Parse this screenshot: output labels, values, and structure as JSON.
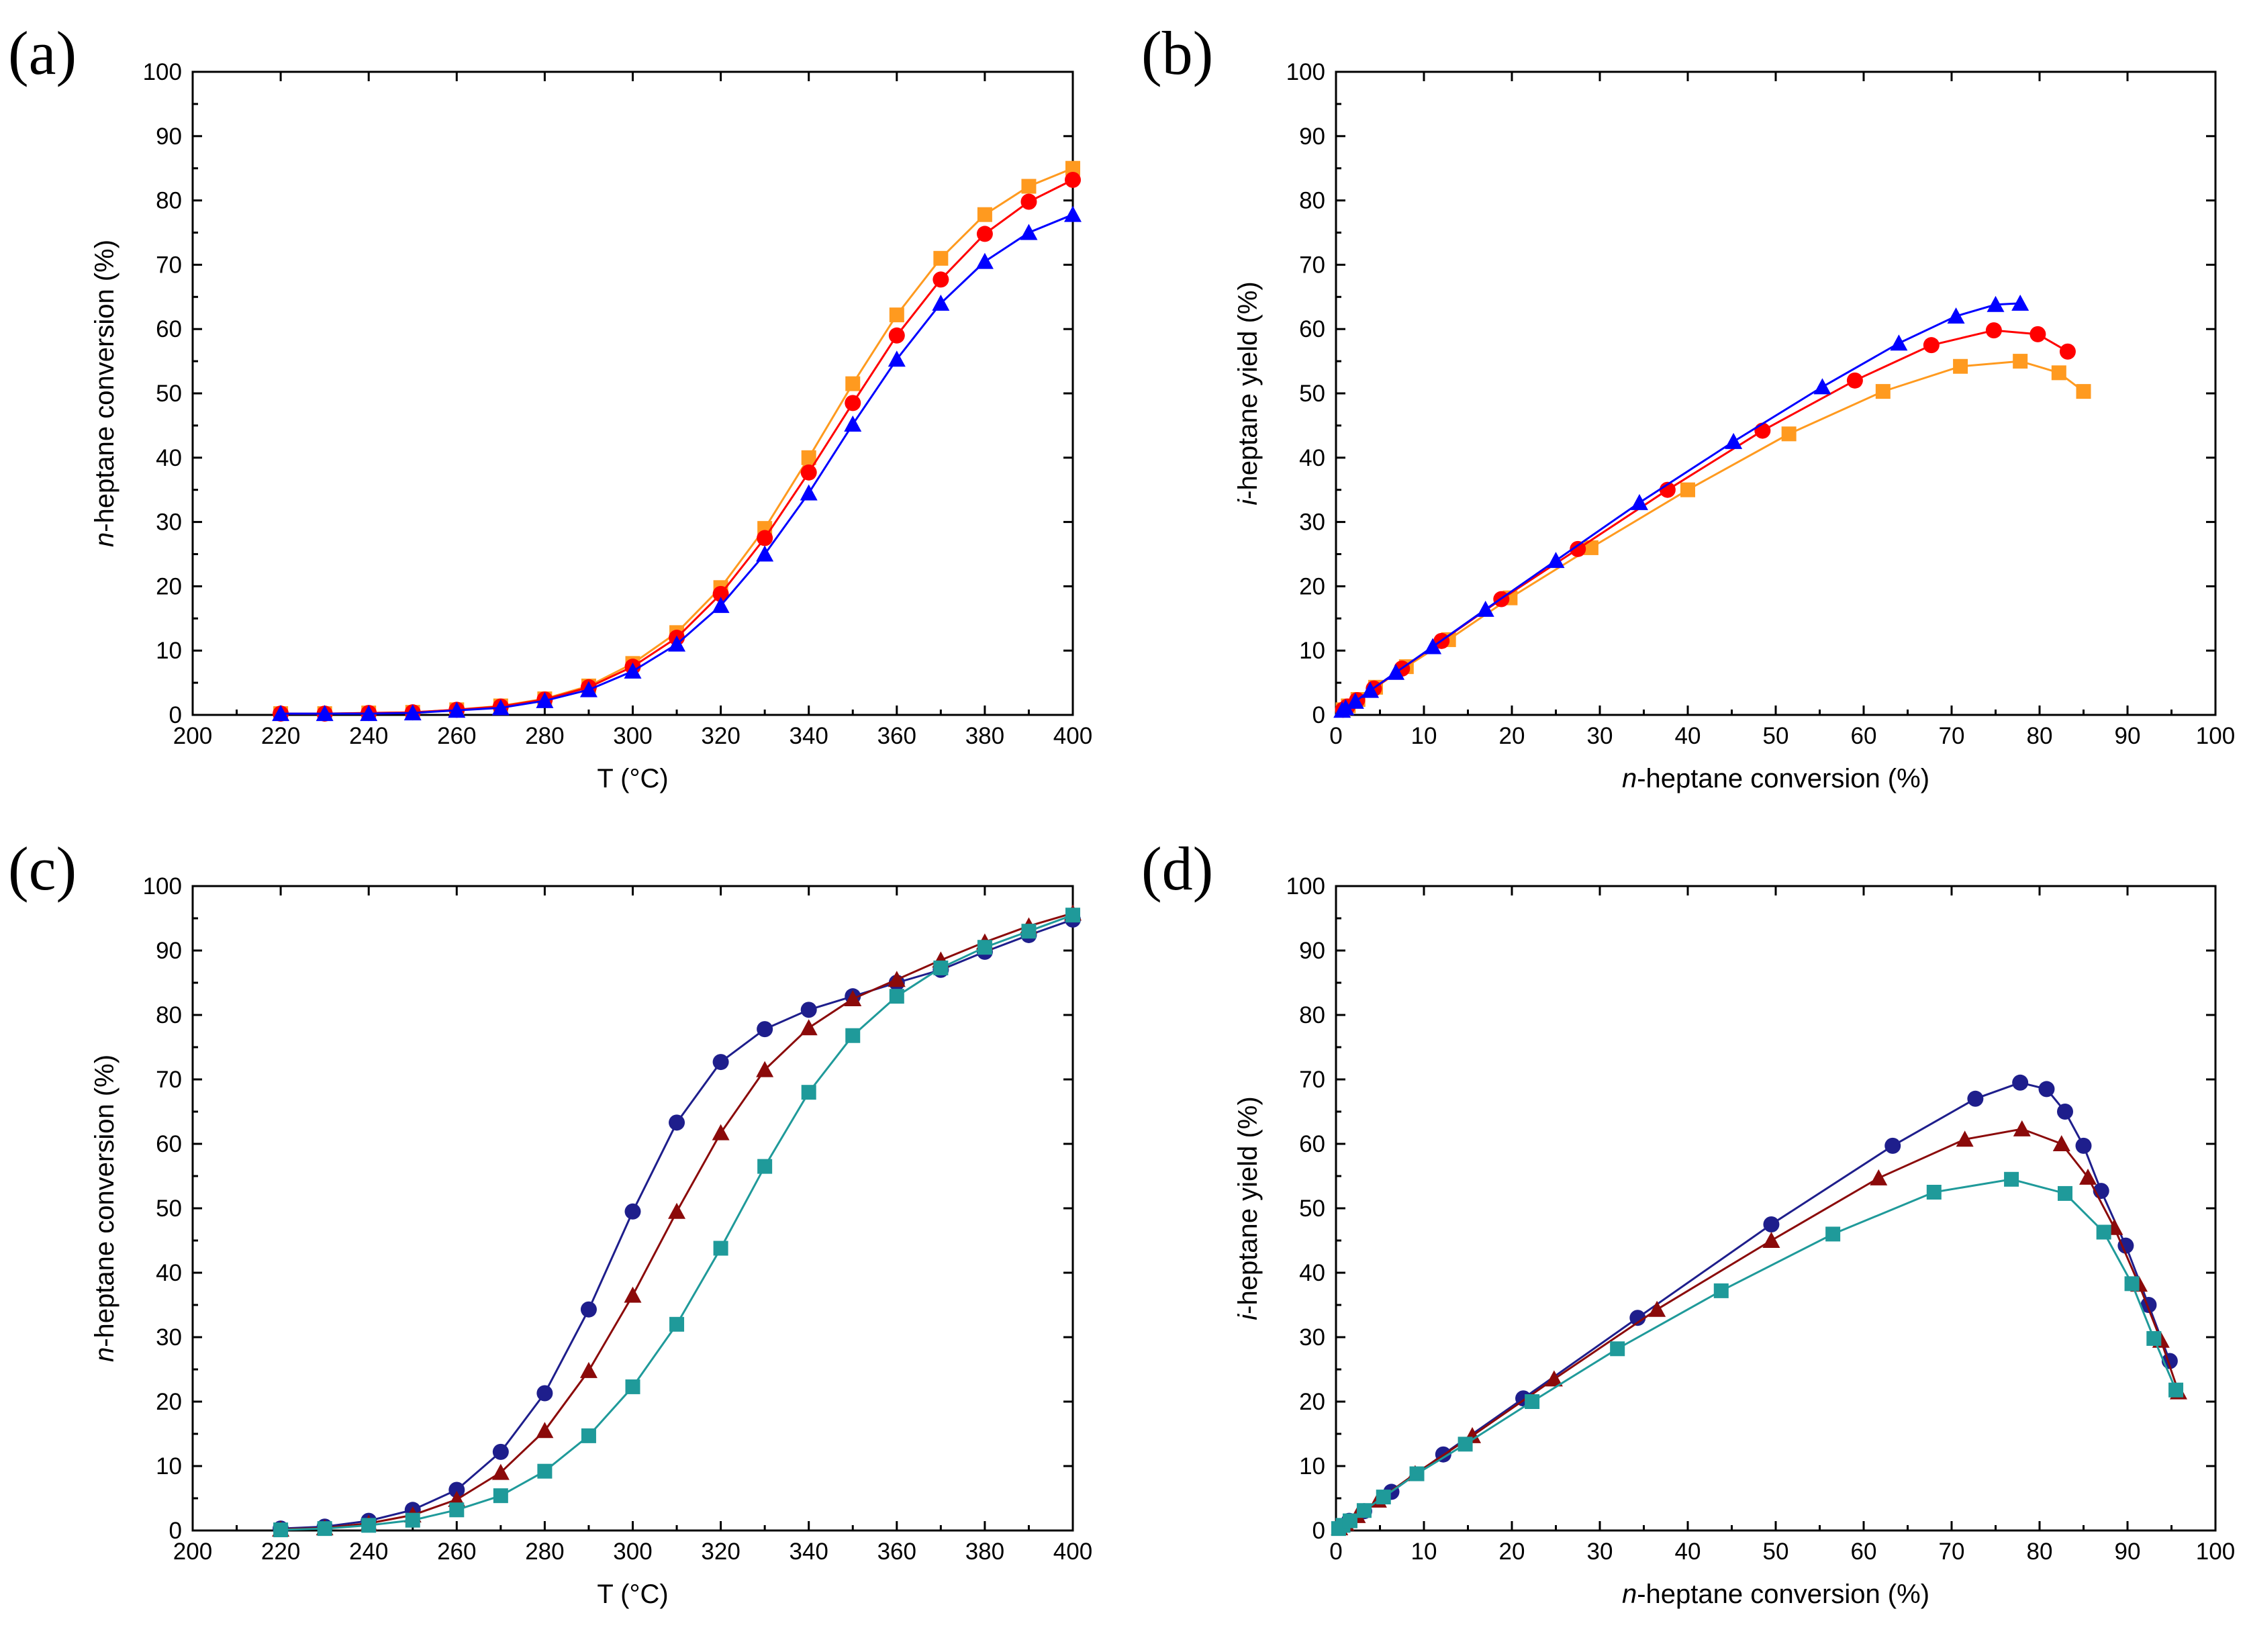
{
  "chart_data": [
    {
      "id": "a",
      "type": "line",
      "panel_label": "(a)",
      "xlabel": "T (°C)",
      "ylabel_italic": "n",
      "ylabel_rest": "-heptane conversion (%)",
      "xlim": [
        200,
        400
      ],
      "ylim": [
        0,
        100
      ],
      "xticks": [
        "200",
        "220",
        "240",
        "260",
        "280",
        "300",
        "320",
        "340",
        "360",
        "380",
        "400"
      ],
      "yticks": [
        "0",
        "10",
        "20",
        "30",
        "40",
        "50",
        "60",
        "70",
        "80",
        "90",
        "100"
      ],
      "series": [
        {
          "name": "orange-square",
          "color": "#FF9A1F",
          "marker": "square",
          "x": [
            220,
            230,
            240,
            250,
            260,
            270,
            280,
            290,
            300,
            310,
            320,
            330,
            340,
            350,
            360,
            370,
            380,
            390,
            400
          ],
          "y": [
            0.2,
            0.2,
            0.3,
            0.4,
            0.8,
            1.4,
            2.5,
            4.5,
            8.0,
            12.8,
            19.8,
            29.0,
            40.0,
            51.5,
            62.2,
            71.0,
            77.8,
            82.2,
            85.0
          ]
        },
        {
          "name": "red-circle",
          "color": "#FF0000",
          "marker": "circle",
          "x": [
            220,
            230,
            240,
            250,
            260,
            270,
            280,
            290,
            300,
            310,
            320,
            330,
            340,
            350,
            360,
            370,
            380,
            390,
            400
          ],
          "y": [
            0.2,
            0.2,
            0.3,
            0.4,
            0.8,
            1.3,
            2.4,
            4.3,
            7.5,
            12.0,
            18.8,
            27.5,
            37.7,
            48.5,
            59.0,
            67.7,
            74.8,
            79.8,
            83.2
          ]
        },
        {
          "name": "blue-triangle",
          "color": "#0000FF",
          "marker": "triangle",
          "x": [
            220,
            230,
            240,
            250,
            260,
            270,
            280,
            290,
            300,
            310,
            320,
            330,
            340,
            350,
            360,
            370,
            380,
            390,
            400
          ],
          "y": [
            0.2,
            0.2,
            0.2,
            0.3,
            0.7,
            1.1,
            2.2,
            3.9,
            6.8,
            11.0,
            17.0,
            25.0,
            34.5,
            45.2,
            55.3,
            64.0,
            70.5,
            75.0,
            77.8
          ]
        }
      ]
    },
    {
      "id": "b",
      "type": "line",
      "panel_label": "(b)",
      "xlabel_italic": "n",
      "xlabel_rest": "-heptane conversion (%)",
      "ylabel_italic": "i",
      "ylabel_rest": "-heptane yield (%)",
      "xlim": [
        0,
        100
      ],
      "ylim": [
        0,
        100
      ],
      "xticks": [
        "0",
        "10",
        "20",
        "30",
        "40",
        "50",
        "60",
        "70",
        "80",
        "90",
        "100"
      ],
      "yticks": [
        "0",
        "10",
        "20",
        "30",
        "40",
        "50",
        "60",
        "70",
        "80",
        "90",
        "100"
      ],
      "series": [
        {
          "name": "orange-square",
          "color": "#FF9A1F",
          "marker": "square",
          "x": [
            0.8,
            1.4,
            2.5,
            4.5,
            8.0,
            12.8,
            19.8,
            29.0,
            40.0,
            51.5,
            62.2,
            71.0,
            77.8,
            82.2,
            85.0
          ],
          "y": [
            0.8,
            1.4,
            2.4,
            4.3,
            7.5,
            11.7,
            18.2,
            26.0,
            35.0,
            43.7,
            50.3,
            54.2,
            55.0,
            53.2,
            50.3
          ]
        },
        {
          "name": "red-circle",
          "color": "#FF0000",
          "marker": "circle",
          "x": [
            0.8,
            1.3,
            2.4,
            4.3,
            7.5,
            12.0,
            18.8,
            27.5,
            37.7,
            48.5,
            59.0,
            67.7,
            74.8,
            79.8,
            83.2
          ],
          "y": [
            0.8,
            1.3,
            2.3,
            4.1,
            7.2,
            11.5,
            18.0,
            25.8,
            35.0,
            44.2,
            52.0,
            57.5,
            59.8,
            59.2,
            56.5
          ]
        },
        {
          "name": "blue-triangle",
          "color": "#0000FF",
          "marker": "triangle",
          "x": [
            0.7,
            1.1,
            2.2,
            3.9,
            6.8,
            11.0,
            17.0,
            25.0,
            34.5,
            45.2,
            55.3,
            64.0,
            70.5,
            75.0,
            77.8
          ],
          "y": [
            0.7,
            1.1,
            2.1,
            3.8,
            6.6,
            10.6,
            16.4,
            24.0,
            33.0,
            42.5,
            51.0,
            57.8,
            62.0,
            63.8,
            64.0
          ]
        }
      ]
    },
    {
      "id": "c",
      "type": "line",
      "panel_label": "(c)",
      "xlabel": "T (°C)",
      "ylabel_italic": "n",
      "ylabel_rest": "-heptane conversion (%)",
      "xlim": [
        200,
        400
      ],
      "ylim": [
        0,
        100
      ],
      "xticks": [
        "200",
        "220",
        "240",
        "260",
        "280",
        "300",
        "320",
        "340",
        "360",
        "380",
        "400"
      ],
      "yticks": [
        "0",
        "10",
        "20",
        "30",
        "40",
        "50",
        "60",
        "70",
        "80",
        "90",
        "100"
      ],
      "series": [
        {
          "name": "navy-circle",
          "color": "#1E1E8C",
          "marker": "circle",
          "x": [
            220,
            230,
            240,
            250,
            260,
            270,
            280,
            290,
            300,
            310,
            320,
            330,
            340,
            350,
            360,
            370,
            380,
            390,
            400
          ],
          "y": [
            0.3,
            0.6,
            1.5,
            3.2,
            6.3,
            12.2,
            21.3,
            34.3,
            49.5,
            63.3,
            72.7,
            77.8,
            80.8,
            82.9,
            85.0,
            87.0,
            89.8,
            92.4,
            94.8
          ]
        },
        {
          "name": "darkred-triangle",
          "color": "#8B0A0A",
          "marker": "triangle",
          "x": [
            220,
            230,
            240,
            250,
            260,
            270,
            280,
            290,
            300,
            310,
            320,
            330,
            340,
            350,
            360,
            370,
            380,
            390,
            400
          ],
          "y": [
            0.2,
            0.4,
            1.1,
            2.4,
            4.8,
            9.0,
            15.5,
            24.8,
            36.5,
            49.5,
            61.7,
            71.5,
            78.0,
            82.5,
            85.5,
            88.5,
            91.3,
            93.8,
            95.8
          ]
        },
        {
          "name": "teal-square",
          "color": "#1F9A9A",
          "marker": "square",
          "x": [
            220,
            230,
            240,
            250,
            260,
            270,
            280,
            290,
            300,
            310,
            320,
            330,
            340,
            350,
            360,
            370,
            380,
            390,
            400
          ],
          "y": [
            0.1,
            0.3,
            0.8,
            1.6,
            3.2,
            5.4,
            9.2,
            14.7,
            22.3,
            32.0,
            43.8,
            56.5,
            68.0,
            76.8,
            82.9,
            87.3,
            90.5,
            93.0,
            95.5
          ]
        }
      ]
    },
    {
      "id": "d",
      "type": "line",
      "panel_label": "(d)",
      "xlabel_italic": "n",
      "xlabel_rest": "-heptane conversion (%)",
      "ylabel_italic": "i",
      "ylabel_rest": "-heptane yield (%)",
      "xlim": [
        0,
        100
      ],
      "ylim": [
        0,
        100
      ],
      "xticks": [
        "0",
        "10",
        "20",
        "30",
        "40",
        "50",
        "60",
        "70",
        "80",
        "90",
        "100"
      ],
      "yticks": [
        "0",
        "10",
        "20",
        "30",
        "40",
        "50",
        "60",
        "70",
        "80",
        "90",
        "100"
      ],
      "series": [
        {
          "name": "navy-circle",
          "color": "#1E1E8C",
          "marker": "circle",
          "x": [
            0.6,
            1.5,
            3.2,
            6.3,
            12.2,
            21.3,
            34.3,
            49.5,
            63.3,
            72.7,
            77.8,
            80.8,
            82.9,
            85.0,
            87.0,
            89.8,
            92.4,
            94.8
          ],
          "y": [
            0.6,
            1.5,
            3.0,
            6.0,
            11.8,
            20.5,
            33.0,
            47.5,
            59.7,
            67.0,
            69.5,
            68.5,
            65.0,
            59.7,
            52.7,
            44.2,
            35.0,
            26.3
          ]
        },
        {
          "name": "darkred-triangle",
          "color": "#8B0A0A",
          "marker": "triangle",
          "x": [
            0.4,
            1.1,
            2.4,
            4.8,
            9.0,
            15.5,
            24.8,
            36.5,
            49.5,
            61.7,
            71.5,
            78.0,
            82.5,
            85.5,
            88.5,
            91.3,
            93.8,
            95.8
          ],
          "y": [
            0.4,
            1.1,
            2.3,
            4.7,
            8.8,
            14.7,
            23.5,
            34.3,
            45.0,
            54.7,
            60.7,
            62.3,
            60.0,
            54.8,
            47.0,
            38.2,
            29.5,
            21.5
          ]
        },
        {
          "name": "teal-square",
          "color": "#1F9A9A",
          "marker": "square",
          "x": [
            0.3,
            0.8,
            1.6,
            3.2,
            5.4,
            9.2,
            14.7,
            22.3,
            32.0,
            43.8,
            56.5,
            68.0,
            76.8,
            82.9,
            87.3,
            90.5,
            93.0,
            95.5
          ],
          "y": [
            0.3,
            0.8,
            1.5,
            3.1,
            5.2,
            8.8,
            13.4,
            20.0,
            28.2,
            37.2,
            46.0,
            52.5,
            54.5,
            52.3,
            46.3,
            38.3,
            29.8,
            21.8
          ]
        }
      ]
    }
  ]
}
